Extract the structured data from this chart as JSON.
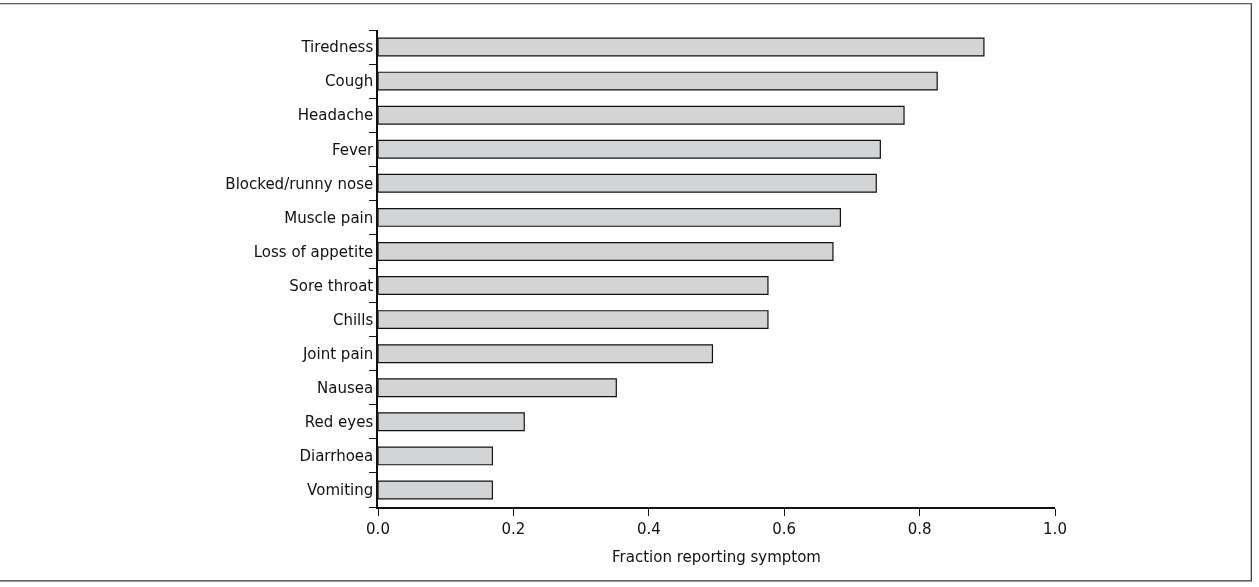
{
  "chart_data": {
    "type": "bar",
    "orientation": "horizontal",
    "xlabel": "Fraction reporting symptom",
    "categories": [
      "Tiredness",
      "Cough",
      "Headache",
      "Fever",
      "Blocked/runny nose",
      "Muscle pain",
      "Loss of appetite",
      "Sore throat",
      "Chills",
      "Joint pain",
      "Nausea",
      "Red eyes",
      "Diarrhoea",
      "Vomiting"
    ],
    "values": [
      0.895,
      0.826,
      0.777,
      0.742,
      0.736,
      0.683,
      0.672,
      0.576,
      0.576,
      0.494,
      0.352,
      0.216,
      0.169,
      0.169
    ],
    "color": "#d3d4d6",
    "xlim": [
      0,
      1
    ],
    "xticks": [
      {
        "value": 0,
        "label": "0.0"
      },
      0.2,
      0.4,
      0.6,
      0.8,
      {
        "value": 1,
        "label": "1.0"
      }
    ]
  }
}
